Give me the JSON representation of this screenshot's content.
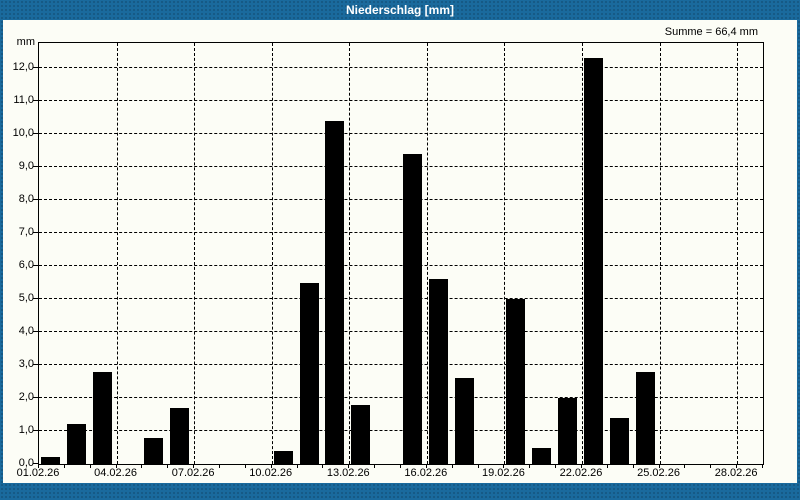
{
  "window": {
    "title": "Niederschlag [mm]"
  },
  "header": {
    "summary": "Summe = 66,4 mm"
  },
  "colors": {
    "titlebar_blue": "#1a6a9d",
    "background": "#fcfdf6",
    "bar": "#000000",
    "grid": "#000000",
    "title_text": "#ffffff"
  },
  "chart_data": {
    "type": "bar",
    "title": "Niederschlag [mm]",
    "unit_label": "mm",
    "summary": "Summe = 66,4 mm",
    "total": 66.4,
    "categories": [
      "01.02.26",
      "02.02.26",
      "03.02.26",
      "04.02.26",
      "05.02.26",
      "06.02.26",
      "07.02.26",
      "08.02.26",
      "09.02.26",
      "10.02.26",
      "11.02.26",
      "12.02.26",
      "13.02.26",
      "14.02.26",
      "15.02.26",
      "16.02.26",
      "17.02.26",
      "18.02.26",
      "19.02.26",
      "20.02.26",
      "21.02.26",
      "22.02.26",
      "23.02.26",
      "24.02.26",
      "25.02.26",
      "26.02.26",
      "27.02.26",
      "28.02.26"
    ],
    "values": [
      0.2,
      1.2,
      2.8,
      0,
      0.8,
      1.7,
      0,
      0,
      0,
      0.4,
      5.5,
      10.4,
      1.8,
      0,
      9.4,
      5.6,
      2.6,
      0,
      5,
      0.5,
      2,
      12.3,
      1.4,
      2.8,
      0,
      0,
      0,
      0
    ],
    "y_tick_labels": [
      "0,0",
      "1,0",
      "2,0",
      "3,0",
      "4,0",
      "5,0",
      "6,0",
      "7,0",
      "8,0",
      "9,0",
      "10,0",
      "11,0",
      "12,0"
    ],
    "x_tick_labels": [
      {
        "day": 1,
        "label": "01.02.26"
      },
      {
        "day": 4,
        "label": "04.02.26"
      },
      {
        "day": 7,
        "label": "07.02.26"
      },
      {
        "day": 10,
        "label": "10.02.26"
      },
      {
        "day": 13,
        "label": "13.02.26"
      },
      {
        "day": 16,
        "label": "16.02.26"
      },
      {
        "day": 19,
        "label": "19.02.26"
      },
      {
        "day": 22,
        "label": "22.02.26"
      },
      {
        "day": 25,
        "label": "25.02.26"
      },
      {
        "day": 28,
        "label": "28.02.26"
      }
    ],
    "ylim": [
      0,
      12.75
    ],
    "grid": true,
    "xlabel": "",
    "ylabel": "mm",
    "legend": null
  }
}
